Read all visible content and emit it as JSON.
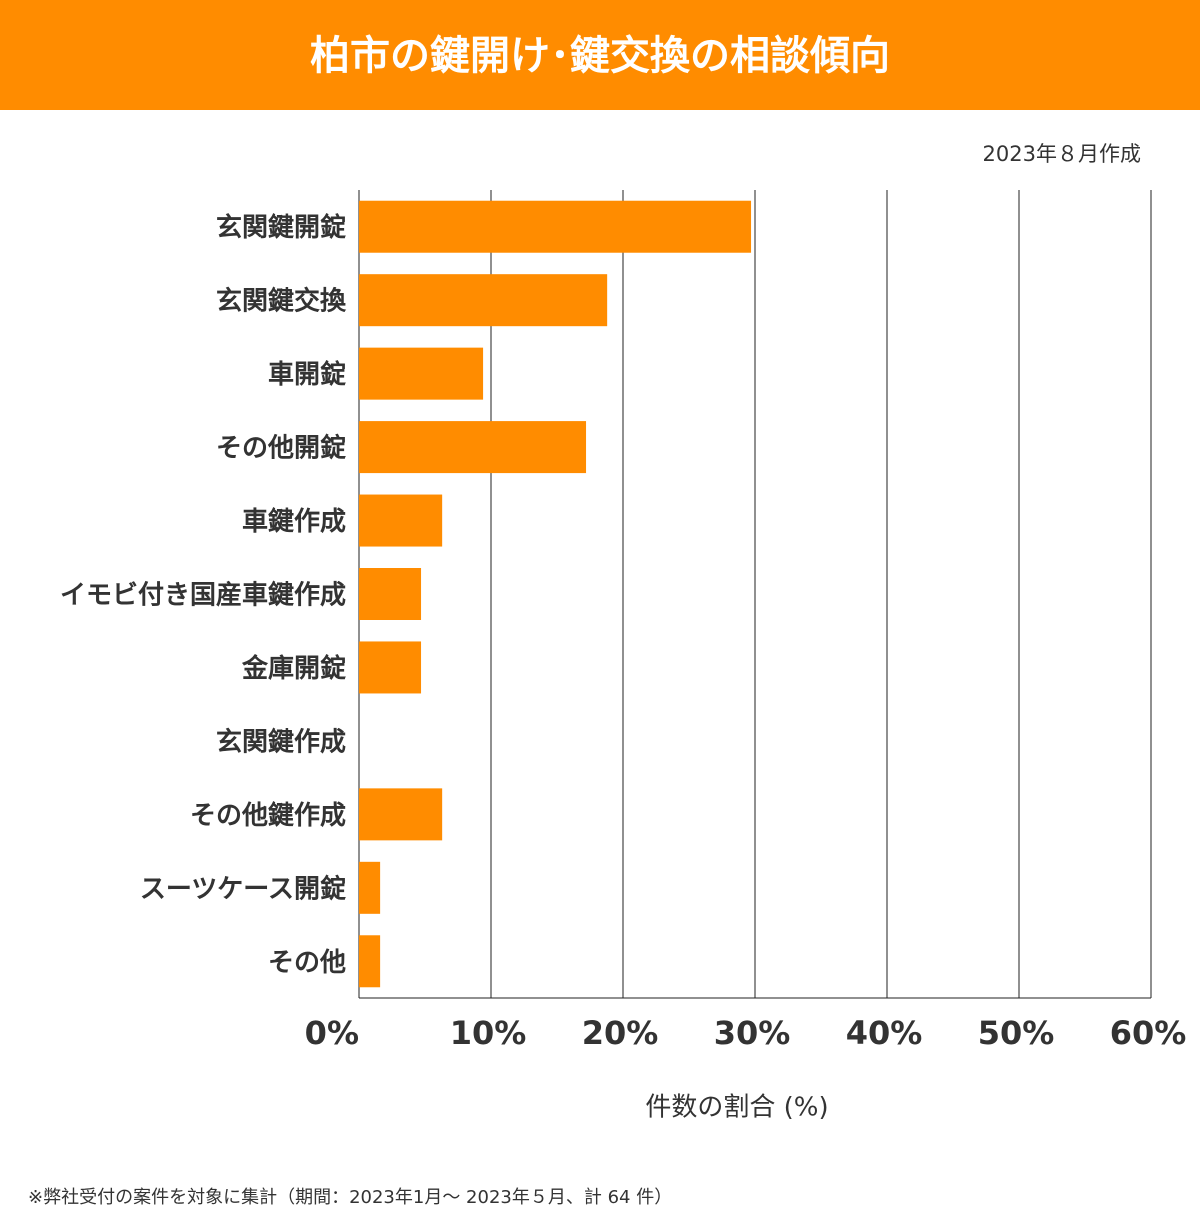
{
  "chart_data": {
    "type": "bar",
    "orientation": "horizontal",
    "title": "柏市の鍵開け･鍵交換の相談傾向",
    "subtitle": "2023年８月作成",
    "x_label": "件数の割合 (%)",
    "note": "※弊社受付の案件を対象に集計（期間：2023年1月～ 2023年５月、計 64 件）",
    "categories": [
      "玄関鍵開錠",
      "玄関鍵交換",
      "車開錠",
      "その他開錠",
      "車鍵作成",
      "イモビ付き国産車鍵作成",
      "金庫開錠",
      "玄関鍵作成",
      "その他鍵作成",
      "スーツケース開錠",
      "その他"
    ],
    "values": [
      29.7,
      18.8,
      9.4,
      17.2,
      6.3,
      4.7,
      4.7,
      0,
      6.3,
      1.6,
      1.6
    ],
    "color": "#ff8c00",
    "xlim": [
      0,
      60
    ],
    "xticks": [
      {
        "value": 0,
        "label": "0%"
      },
      {
        "value": 10,
        "label": "10%"
      },
      {
        "value": 20,
        "label": "20%"
      },
      {
        "value": 30,
        "label": "30%"
      },
      {
        "value": 40,
        "label": "40%"
      },
      {
        "value": 50,
        "label": "50%"
      },
      {
        "value": 60,
        "label": "60%"
      }
    ],
    "grid": true
  }
}
